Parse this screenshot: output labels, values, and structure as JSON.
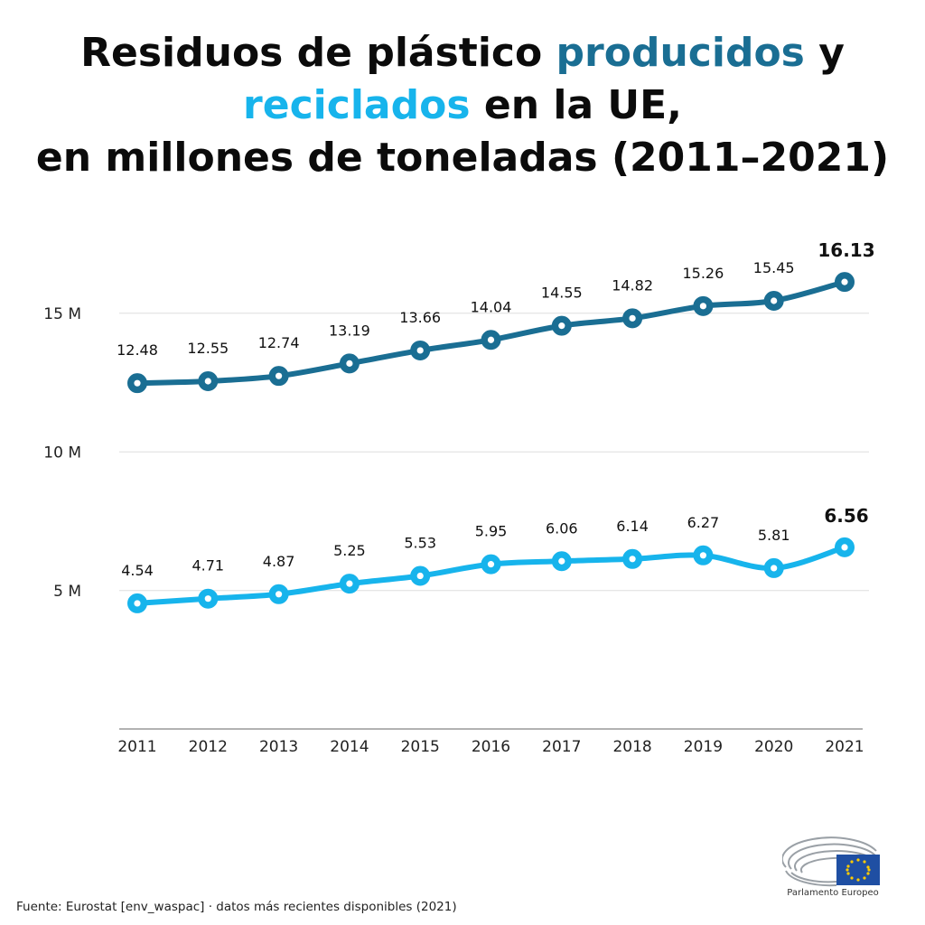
{
  "title": {
    "part1": "Residuos de plástico ",
    "produced_word": "producidos",
    "part2": " y",
    "recycled_word": "reciclados",
    "part3": " en la UE,",
    "line3": "en millones de toneladas (2011–2021)"
  },
  "colors": {
    "produced": "#1a6e93",
    "recycled": "#17b4ec",
    "grid": "#dddddd",
    "axis": "#999999"
  },
  "chart_data": {
    "type": "line",
    "x": [
      "2011",
      "2012",
      "2013",
      "2014",
      "2015",
      "2016",
      "2017",
      "2018",
      "2019",
      "2020",
      "2021"
    ],
    "series": [
      {
        "name": "producidos",
        "values": [
          12.48,
          12.55,
          12.74,
          13.19,
          13.66,
          14.04,
          14.55,
          14.82,
          15.26,
          15.45,
          16.13
        ],
        "labels": [
          "12.48",
          "12.55",
          "12.74",
          "13.19",
          "13.66",
          "14.04",
          "14.55",
          "14.82",
          "15.26",
          "15.45",
          "16.13"
        ],
        "color": "#1a6e93"
      },
      {
        "name": "reciclados",
        "values": [
          4.54,
          4.71,
          4.87,
          5.25,
          5.53,
          5.95,
          6.06,
          6.14,
          6.27,
          5.81,
          6.56
        ],
        "labels": [
          "4.54",
          "4.71",
          "4.87",
          "5.25",
          "5.53",
          "5.95",
          "6.06",
          "6.14",
          "6.27",
          "5.81",
          "6.56"
        ],
        "color": "#17b4ec"
      }
    ],
    "y_ticks": [
      5,
      10,
      15
    ],
    "y_tick_labels": [
      "5 M",
      "10 M",
      "15 M"
    ],
    "ylim": [
      0,
      17
    ],
    "grid": true,
    "last_label_bold": true
  },
  "footer": {
    "source": "Fuente: Eurostat [env_waspac] · datos más recientes disponibles (2021)",
    "logo_text": "Parlamento Europeo"
  }
}
